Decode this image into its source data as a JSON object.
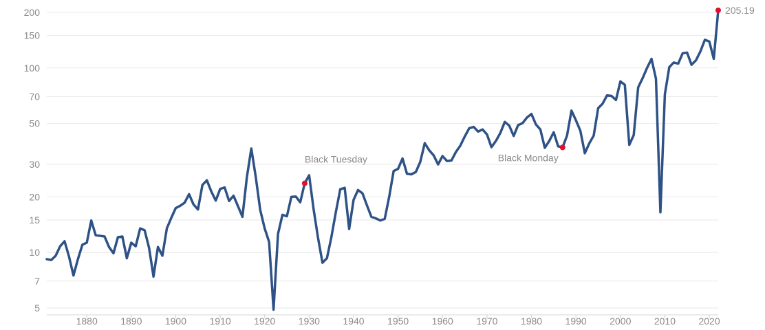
{
  "chart_data": {
    "type": "line",
    "title": "",
    "xlabel": "",
    "ylabel": "",
    "yscale": "log",
    "xlim": [
      1871,
      2022
    ],
    "ylim": [
      5,
      210
    ],
    "grid": "horizontal",
    "x_ticks": [
      "1880",
      "1890",
      "1900",
      "1910",
      "1920",
      "1930",
      "1940",
      "1950",
      "1960",
      "1970",
      "1980",
      "1990",
      "2000",
      "2010",
      "2020"
    ],
    "y_ticks": [
      "5",
      "7",
      "10",
      "15",
      "20",
      "30",
      "50",
      "70",
      "100",
      "150",
      "200"
    ],
    "series_color": "#2f5286",
    "marker_color": "#e0102e",
    "series": [
      {
        "x": [
          1871,
          1872,
          1873,
          1874,
          1875,
          1876,
          1877,
          1878,
          1879,
          1880,
          1881,
          1882,
          1883,
          1884,
          1885,
          1886,
          1887,
          1888,
          1889,
          1890,
          1891,
          1892,
          1893,
          1894,
          1895,
          1896,
          1897,
          1898,
          1899,
          1900,
          1901,
          1902,
          1903,
          1904,
          1905,
          1906,
          1907,
          1908,
          1909,
          1910,
          1911,
          1912,
          1913,
          1914,
          1915,
          1916,
          1917,
          1918,
          1919,
          1920,
          1921,
          1922,
          1923,
          1924,
          1925,
          1926,
          1927,
          1928,
          1929,
          1930,
          1931,
          1932,
          1933,
          1934,
          1935,
          1936,
          1937,
          1938,
          1939,
          1940,
          1941,
          1942,
          1943,
          1944,
          1945,
          1946,
          1947,
          1948,
          1949,
          1950,
          1951,
          1952,
          1953,
          1954,
          1955,
          1956,
          1957,
          1958,
          1959,
          1960,
          1961,
          1962,
          1963,
          1964,
          1965,
          1966,
          1967,
          1968,
          1969,
          1970,
          1971,
          1972,
          1973,
          1974,
          1975,
          1976,
          1977,
          1978,
          1979,
          1980,
          1981,
          1982,
          1983,
          1984,
          1985,
          1986,
          1987,
          1988,
          1989,
          1990,
          1991,
          1992,
          1993,
          1994,
          1995,
          1996,
          1997,
          1998,
          1999,
          2000,
          2001,
          2002,
          2003,
          2004,
          2005,
          2006,
          2007,
          2008,
          2009,
          2010,
          2011,
          2012,
          2013,
          2014,
          2015,
          2016,
          2017,
          2018,
          2019,
          2020,
          2021,
          2022
        ],
        "values": [
          9.2,
          9.1,
          9.6,
          10.8,
          11.5,
          9.5,
          7.5,
          9.2,
          11.0,
          11.3,
          14.9,
          12.4,
          12.3,
          12.2,
          10.7,
          9.9,
          12.1,
          12.2,
          9.3,
          11.3,
          10.8,
          13.5,
          13.2,
          10.6,
          7.4,
          10.7,
          9.6,
          13.5,
          15.4,
          17.4,
          17.9,
          18.6,
          20.7,
          18.2,
          17.1,
          23.2,
          24.6,
          21.4,
          19.1,
          22.1,
          22.5,
          19.0,
          20.3,
          17.8,
          15.6,
          25.6,
          36.6,
          25.6,
          17.0,
          13.5,
          11.4,
          4.9,
          12.6,
          16.0,
          15.7,
          20.0,
          20.1,
          18.7,
          23.7,
          26.2,
          17.2,
          12.0,
          8.8,
          9.3,
          12.1,
          16.5,
          22.0,
          22.4,
          13.4,
          19.3,
          21.8,
          20.9,
          18.0,
          15.6,
          15.3,
          14.9,
          15.2,
          20.0,
          27.6,
          28.4,
          32.3,
          26.7,
          26.5,
          27.3,
          31.0,
          39.1,
          35.8,
          33.6,
          30.0,
          33.3,
          31.3,
          31.5,
          35.0,
          37.9,
          42.5,
          47.1,
          47.9,
          45.2,
          46.4,
          43.6,
          37.2,
          40.2,
          44.4,
          51.0,
          48.7,
          42.8,
          49.0,
          50.2,
          53.9,
          56.3,
          49.4,
          46.4,
          36.9,
          40.2,
          44.8,
          37.6,
          37.1,
          43.0,
          58.7,
          52.0,
          45.6,
          34.5,
          39.0,
          43.0,
          60.5,
          64.0,
          71.0,
          70.5,
          67.0,
          84.5,
          81.0,
          38.3,
          43.3,
          78.5,
          88.0,
          100.1,
          112.0,
          87.3,
          16.5,
          72.0,
          101.0,
          107.0,
          105.5,
          120.0,
          121.0,
          104.0,
          110.0,
          123.0,
          142.0,
          139.0,
          112.0,
          205.19
        ]
      }
    ],
    "annotations": [
      {
        "label": "Black Tuesday",
        "x": 1929,
        "y": 23.7
      },
      {
        "label": "Black Monday",
        "x": 1987,
        "y": 37.1
      },
      {
        "label": "205.19",
        "x": 2022,
        "y": 205.19
      }
    ]
  }
}
